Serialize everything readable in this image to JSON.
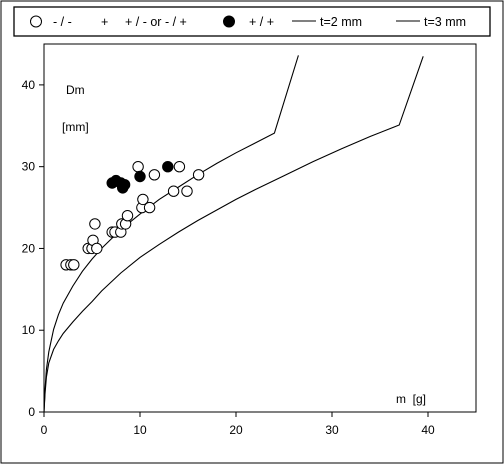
{
  "chart_data": {
    "type": "scatter",
    "title": "",
    "xlabel": "m  [g]",
    "ylabel": "Dm",
    "ylabel_unit": "[mm]",
    "xlim": [
      0,
      45
    ],
    "ylim": [
      0,
      45
    ],
    "xticks": [
      0,
      10,
      20,
      30,
      40
    ],
    "yticks": [
      0,
      10,
      20,
      30,
      40
    ],
    "grid": false,
    "legend_position": "top-outside",
    "legend": [
      {
        "marker": "open-circle",
        "label": "- / -"
      },
      {
        "marker": "plus",
        "label": "+ / - or - / +"
      },
      {
        "marker": "filled-circle",
        "label": "+ / +"
      },
      {
        "marker": "line",
        "label": "t=2 mm"
      },
      {
        "marker": "line",
        "label": "t=3 mm"
      }
    ],
    "series": [
      {
        "name": "- / -",
        "marker": "open-circle",
        "points": [
          [
            2.3,
            18
          ],
          [
            2.8,
            18
          ],
          [
            3.1,
            18
          ],
          [
            4.6,
            20
          ],
          [
            5.0,
            20
          ],
          [
            5.1,
            21
          ],
          [
            5.3,
            23
          ],
          [
            5.5,
            20
          ],
          [
            7.1,
            22
          ],
          [
            7.4,
            22
          ],
          [
            8.0,
            22
          ],
          [
            8.1,
            23
          ],
          [
            8.5,
            23
          ],
          [
            8.7,
            24
          ],
          [
            9.8,
            30
          ],
          [
            10.2,
            25
          ],
          [
            10.3,
            26
          ],
          [
            11.0,
            25
          ],
          [
            11.5,
            29
          ],
          [
            13.5,
            27
          ],
          [
            14.1,
            30
          ],
          [
            14.9,
            27
          ],
          [
            16.1,
            29
          ]
        ]
      },
      {
        "name": "+ / +",
        "marker": "filled-circle",
        "points": [
          [
            7.1,
            28
          ],
          [
            7.5,
            28.3
          ],
          [
            8.0,
            28
          ],
          [
            8.2,
            27.4
          ],
          [
            8.4,
            27.8
          ],
          [
            10.0,
            28.8
          ],
          [
            12.9,
            30
          ]
        ]
      },
      {
        "name": "t=2 mm",
        "marker": "line",
        "x": [
          0,
          0.1,
          0.25,
          0.5,
          1,
          1.5,
          2,
          3,
          4,
          5,
          6,
          8,
          10,
          12,
          14,
          16,
          18,
          20,
          22,
          24,
          26.5
        ],
        "y": [
          0,
          2.7,
          5.2,
          7.35,
          10.1,
          11.9,
          13.3,
          15.4,
          17.2,
          18.7,
          20.0,
          22.3,
          24.2,
          26.0,
          27.5,
          29.0,
          30.4,
          31.7,
          32.9,
          34.1,
          43.6
        ]
      },
      {
        "name": "t=3 mm",
        "marker": "line",
        "x": [
          0,
          0.1,
          0.25,
          0.5,
          1,
          1.5,
          2,
          3,
          4,
          5,
          6,
          8,
          10,
          12,
          14,
          16,
          18,
          20,
          22,
          25,
          28,
          31,
          34,
          37,
          39.5
        ],
        "y": [
          0,
          2.2,
          4.25,
          6.0,
          7.65,
          8.7,
          9.6,
          11.0,
          12.3,
          13.5,
          14.8,
          17.0,
          18.9,
          20.5,
          22.0,
          23.4,
          24.7,
          26.0,
          27.2,
          28.9,
          30.6,
          32.2,
          33.7,
          35.1,
          43.5
        ]
      }
    ]
  }
}
